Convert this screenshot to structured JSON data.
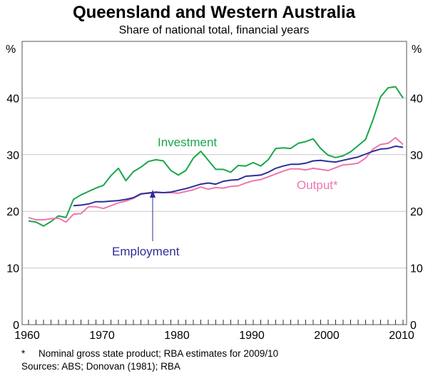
{
  "chart_data": {
    "type": "line",
    "title": "Queensland and Western Australia",
    "subtitle": "Share of national total, financial years",
    "ylabel_left": "%",
    "ylabel_right": "%",
    "ylim": [
      0,
      50
    ],
    "yticks": [
      0,
      10,
      20,
      30,
      40
    ],
    "xlim": [
      1960,
      2010
    ],
    "xticks": [
      1960,
      1970,
      1980,
      1990,
      2000,
      2010
    ],
    "grid": true,
    "colors": {
      "investment": "#1aa64a",
      "output": "#f075b0",
      "employment": "#2e2e99"
    },
    "series": [
      {
        "name": "Investment",
        "key": "investment",
        "start": 1960,
        "values": [
          18.3,
          18.1,
          17.4,
          18.2,
          19.2,
          18.9,
          22.1,
          22.9,
          23.5,
          24.1,
          24.6,
          26.3,
          27.6,
          25.4,
          27.0,
          27.8,
          28.8,
          29.1,
          28.9,
          27.2,
          26.4,
          27.2,
          29.4,
          30.6,
          29.0,
          27.4,
          27.4,
          26.9,
          28.1,
          28.0,
          28.6,
          28.0,
          29.1,
          31.1,
          31.2,
          31.1,
          32.0,
          32.3,
          32.8,
          31.1,
          29.9,
          29.5,
          29.8,
          30.5,
          31.6,
          32.7,
          36.2,
          40.2,
          41.8,
          42.0,
          40.0
        ]
      },
      {
        "name": "Output*",
        "key": "output",
        "start": 1960,
        "values": [
          18.9,
          18.5,
          18.5,
          18.7,
          18.8,
          18.1,
          19.5,
          19.6,
          20.8,
          20.8,
          20.5,
          21.0,
          21.5,
          21.8,
          22.3,
          23.0,
          23.3,
          23.3,
          23.3,
          23.3,
          23.2,
          23.5,
          23.8,
          24.3,
          23.9,
          24.2,
          24.1,
          24.4,
          24.5,
          25.0,
          25.4,
          25.6,
          26.1,
          26.6,
          27.1,
          27.5,
          27.5,
          27.3,
          27.6,
          27.4,
          27.2,
          27.7,
          28.2,
          28.3,
          28.5,
          29.4,
          31.0,
          31.8,
          32.0,
          33.0,
          31.8
        ]
      },
      {
        "name": "Employment",
        "key": "employment",
        "start": 1966,
        "values": [
          21.0,
          21.1,
          21.3,
          21.7,
          21.7,
          21.8,
          21.9,
          22.1,
          22.4,
          23.1,
          23.2,
          23.4,
          23.3,
          23.4,
          23.7,
          24.0,
          24.4,
          24.8,
          25.0,
          24.8,
          25.3,
          25.5,
          25.6,
          26.2,
          26.3,
          26.4,
          26.9,
          27.6,
          28.0,
          28.3,
          28.3,
          28.5,
          28.9,
          29.0,
          28.8,
          28.7,
          29.0,
          29.3,
          29.6,
          30.1,
          30.6,
          31.0,
          31.1,
          31.5,
          31.3
        ]
      }
    ],
    "annotations": {
      "investment": "Investment",
      "output": "Output*",
      "employment": "Employment"
    },
    "footnotes": [
      "*     Nominal gross state product; RBA estimates for 2009/10",
      "Sources: ABS; Donovan (1981); RBA"
    ]
  }
}
